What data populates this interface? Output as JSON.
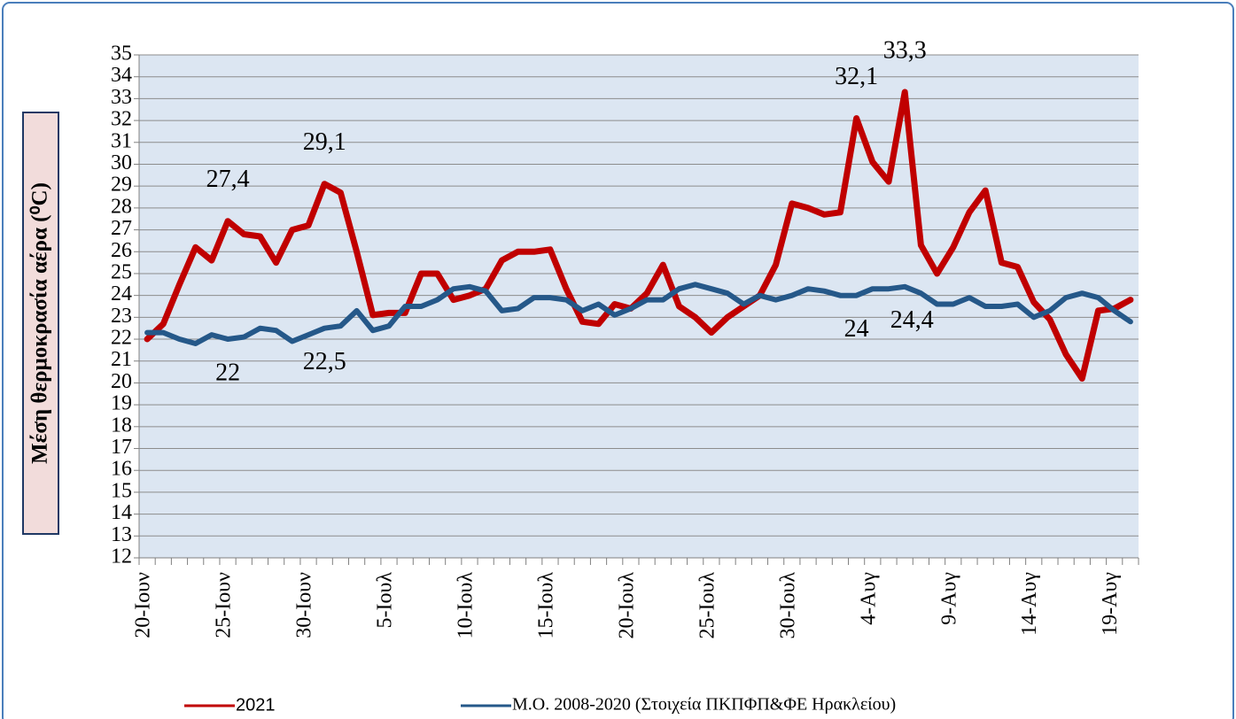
{
  "chart_data": {
    "type": "line",
    "y_label": "Μέση θερμοκρασία αέρα (⁰C)",
    "categories": [
      "20-Ιουν",
      null,
      null,
      null,
      null,
      "25-Ιουν",
      null,
      null,
      null,
      null,
      "30-Ιουν",
      null,
      null,
      null,
      null,
      "5-Ιουλ",
      null,
      null,
      null,
      null,
      "10-Ιουλ",
      null,
      null,
      null,
      null,
      "15-Ιουλ",
      null,
      null,
      null,
      null,
      "20-Ιουλ",
      null,
      null,
      null,
      null,
      "25-Ιουλ",
      null,
      null,
      null,
      null,
      "30-Ιουλ",
      null,
      null,
      null,
      null,
      "4-Αυγ",
      null,
      null,
      null,
      null,
      "9-Αυγ",
      null,
      null,
      null,
      null,
      "14-Αυγ",
      null,
      null,
      null,
      null,
      "19-Αυγ",
      null
    ],
    "series": [
      {
        "name": "2021",
        "color": "#c00000",
        "values": [
          22.0,
          22.7,
          24.5,
          26.2,
          25.6,
          27.4,
          26.8,
          26.7,
          25.5,
          27.0,
          27.2,
          29.1,
          28.7,
          26.0,
          23.1,
          23.2,
          23.2,
          25.0,
          25.0,
          23.8,
          24.0,
          24.3,
          25.6,
          26.0,
          26.0,
          26.1,
          24.3,
          22.8,
          22.7,
          23.6,
          23.4,
          24.1,
          25.4,
          23.5,
          23.0,
          22.3,
          23.0,
          23.5,
          24.0,
          25.4,
          28.2,
          28.0,
          27.7,
          27.8,
          32.1,
          30.1,
          29.2,
          33.3,
          26.3,
          25.0,
          26.2,
          27.8,
          28.8,
          25.5,
          25.3,
          23.7,
          22.9,
          21.3,
          20.2,
          23.3,
          23.4,
          23.8
        ],
        "value_labels": [
          null,
          null,
          null,
          null,
          null,
          "27,4",
          null,
          null,
          null,
          null,
          null,
          "29,1",
          null,
          null,
          null,
          null,
          null,
          null,
          null,
          null,
          null,
          null,
          null,
          null,
          null,
          null,
          null,
          null,
          null,
          null,
          null,
          null,
          null,
          null,
          null,
          null,
          null,
          null,
          null,
          null,
          null,
          null,
          null,
          null,
          "32,1",
          null,
          null,
          "33,3",
          null,
          null,
          null,
          null,
          null,
          null,
          null,
          null,
          null,
          null,
          null,
          null,
          null,
          null
        ]
      },
      {
        "name": "Μ.Ο. 2008-2020 (Στοιχεία ΠΚΠΦΠ&ΦΕ Ηρακλείου)",
        "color": "#255889",
        "values": [
          22.3,
          22.3,
          22.0,
          21.8,
          22.2,
          22.0,
          22.1,
          22.5,
          22.4,
          21.9,
          22.2,
          22.5,
          22.6,
          23.3,
          22.4,
          22.6,
          23.5,
          23.5,
          23.8,
          24.3,
          24.4,
          24.2,
          23.3,
          23.4,
          23.9,
          23.9,
          23.8,
          23.3,
          23.6,
          23.1,
          23.4,
          23.8,
          23.8,
          24.3,
          24.5,
          24.3,
          24.1,
          23.6,
          24.0,
          23.8,
          24.0,
          24.3,
          24.2,
          24.0,
          24.0,
          24.3,
          24.3,
          24.4,
          24.1,
          23.6,
          23.6,
          23.9,
          23.5,
          23.5,
          23.6,
          23.0,
          23.3,
          23.9,
          24.1,
          23.9,
          23.3,
          22.8
        ],
        "value_labels": [
          null,
          null,
          null,
          null,
          null,
          "22",
          null,
          null,
          null,
          null,
          null,
          "22,5",
          null,
          null,
          null,
          null,
          null,
          null,
          null,
          null,
          null,
          null,
          null,
          null,
          null,
          null,
          null,
          null,
          null,
          null,
          null,
          null,
          null,
          null,
          null,
          null,
          null,
          null,
          null,
          null,
          null,
          null,
          null,
          null,
          "24",
          null,
          null,
          "24,4",
          null,
          null,
          null,
          null,
          null,
          null,
          null,
          null,
          null,
          null,
          null,
          null,
          null,
          null
        ]
      }
    ],
    "ylim": [
      12,
      35
    ],
    "yticks": [
      12,
      13,
      14,
      15,
      16,
      17,
      18,
      19,
      20,
      21,
      22,
      23,
      24,
      25,
      26,
      27,
      28,
      29,
      30,
      31,
      32,
      33,
      34,
      35
    ],
    "grid": true
  }
}
